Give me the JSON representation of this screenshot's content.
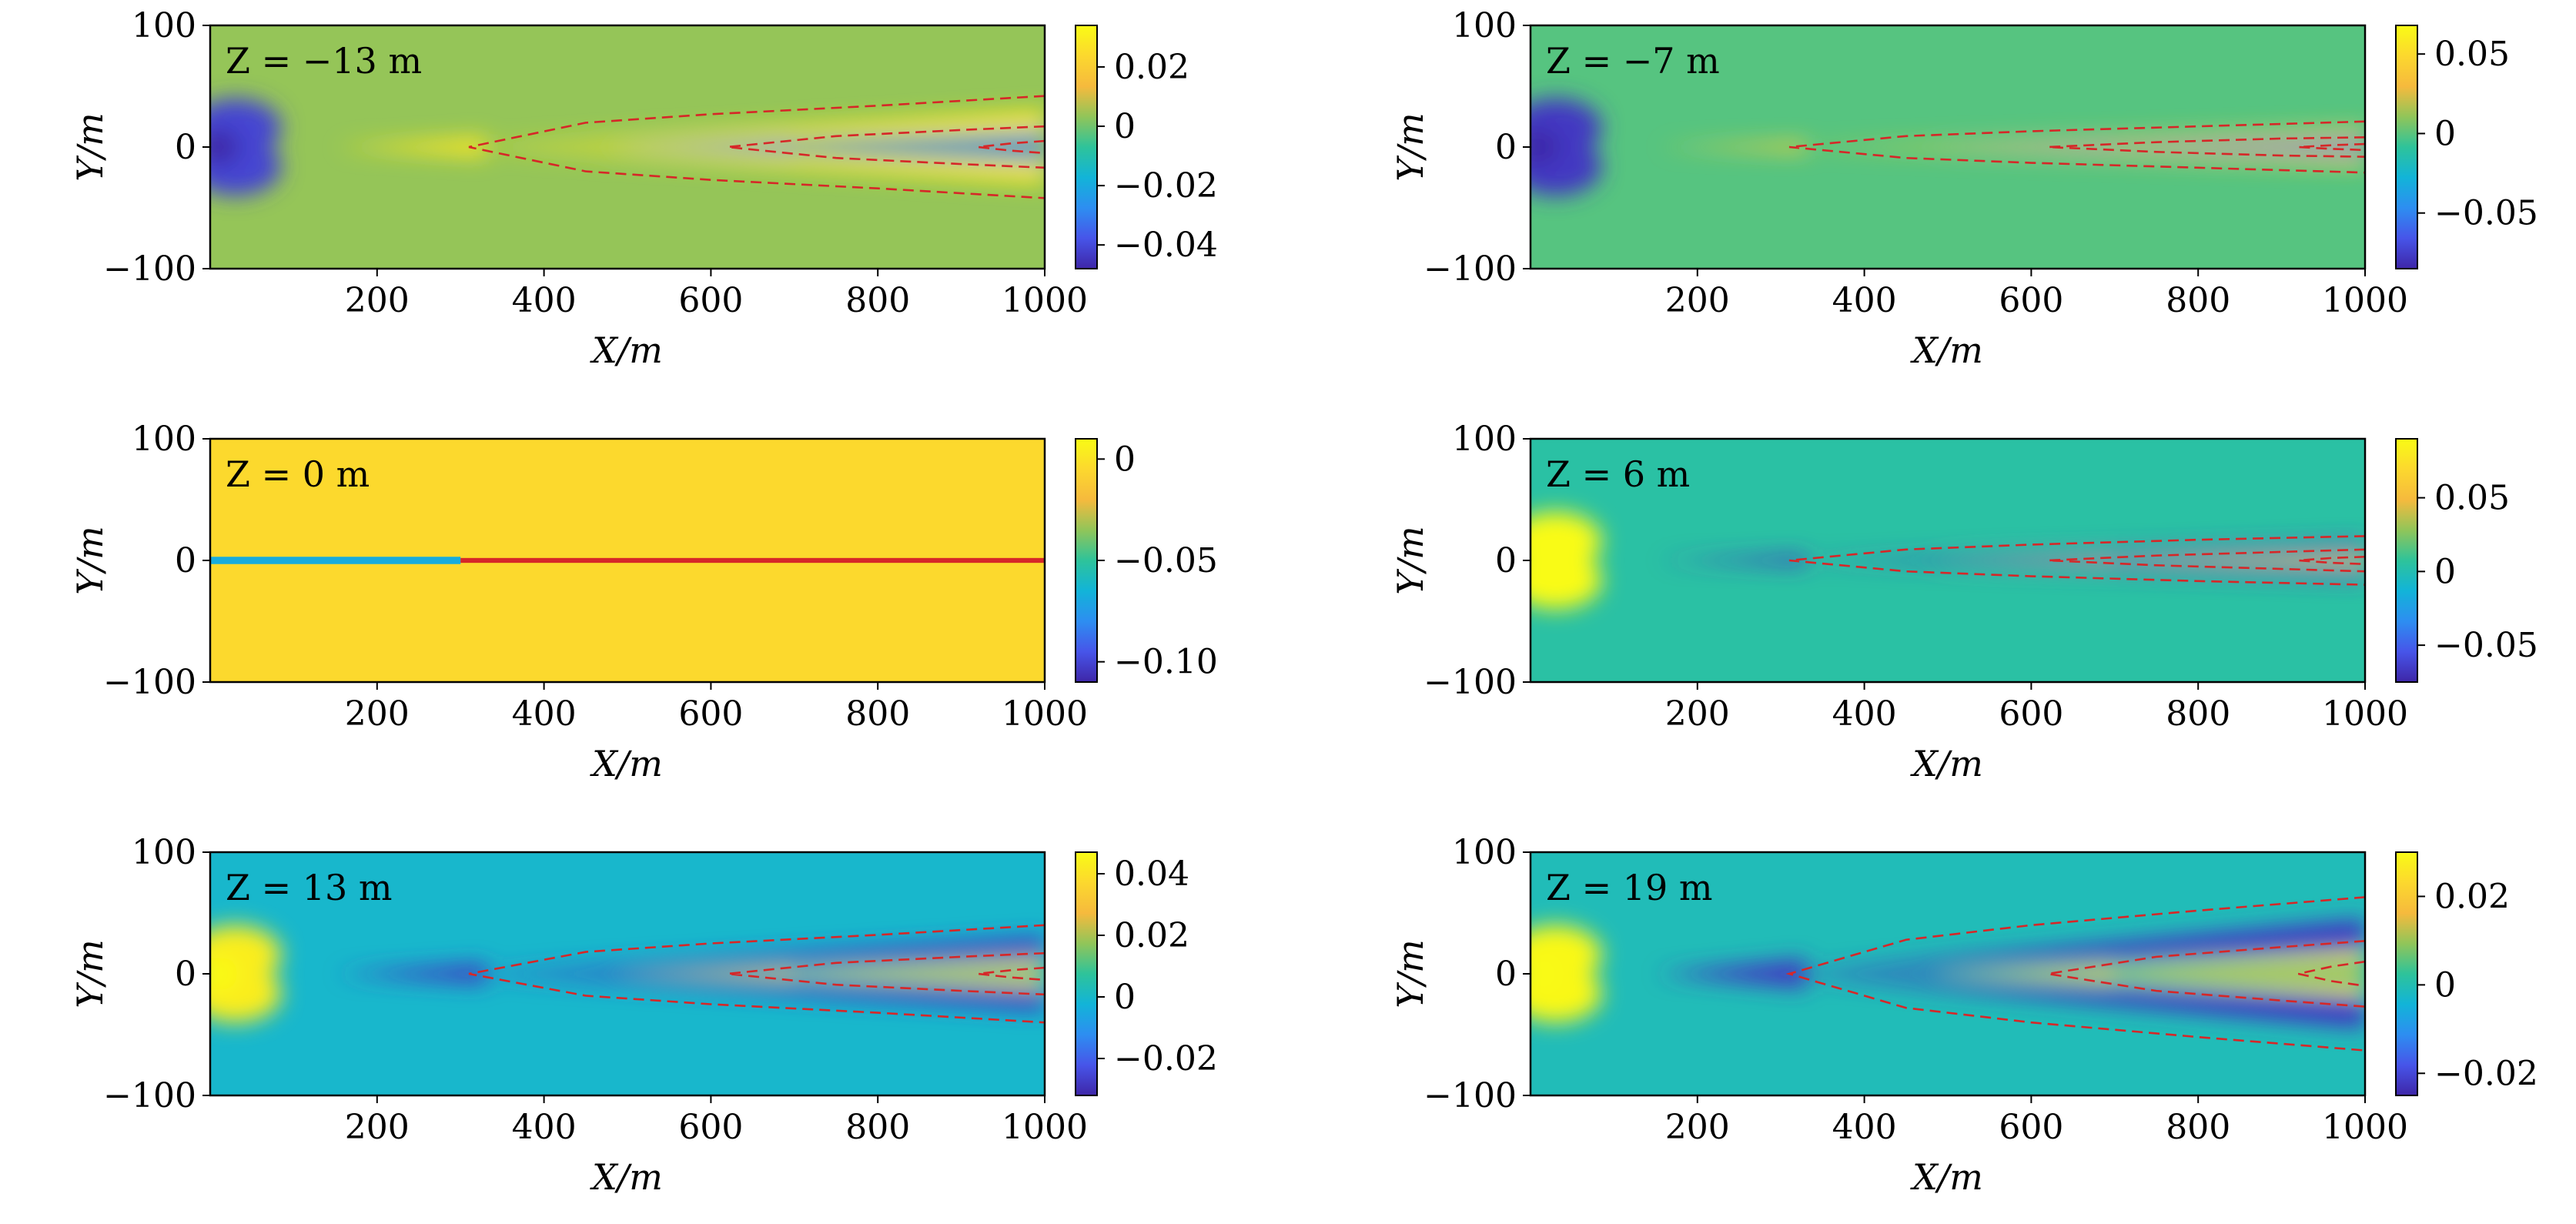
{
  "figure": {
    "title": "",
    "xlabel": "X/m",
    "ylabel": "Y/m",
    "z_unit": "m",
    "colormap": [
      "#3e26a8",
      "#4755e9",
      "#2d8ef1",
      "#12b4d8",
      "#2ec39a",
      "#91c559",
      "#f6ba3d",
      "#fcd82e",
      "#f9fb15"
    ],
    "contour_color": "#d62728",
    "contour_style": "dashed"
  },
  "chart_data": [
    {
      "type": "heatmap",
      "z_label": "Z = −13 m",
      "xlabel": "X/m",
      "ylabel": "Y/m",
      "xlim": [
        0,
        1000
      ],
      "ylim": [
        -100,
        100
      ],
      "x_ticks": [
        "200",
        "400",
        "600",
        "800",
        "1000"
      ],
      "y_ticks": [
        "100",
        "0",
        "−100"
      ],
      "clim": [
        -0.048,
        0.034
      ],
      "colorbar_ticks": [
        {
          "v": 0.02,
          "t": "0.02"
        },
        {
          "v": 0,
          "t": "0"
        },
        {
          "v": -0.02,
          "t": "−0.02"
        },
        {
          "v": -0.04,
          "t": "−0.04"
        }
      ],
      "contours": [
        {
          "x": [
            310,
            450,
            600,
            800,
            1000
          ],
          "y": [
            0,
            20,
            27,
            34,
            42
          ]
        },
        {
          "x": [
            620,
            750,
            900,
            1000
          ],
          "y": [
            0,
            9,
            14,
            17
          ]
        },
        {
          "x": [
            920,
            960,
            1000
          ],
          "y": [
            0,
            3,
            5
          ]
        }
      ]
    },
    {
      "type": "heatmap",
      "z_label": "Z = −7 m",
      "xlabel": "X/m",
      "ylabel": "Y/m",
      "xlim": [
        0,
        1000
      ],
      "ylim": [
        -100,
        100
      ],
      "x_ticks": [
        "200",
        "400",
        "600",
        "800",
        "1000"
      ],
      "y_ticks": [
        "100",
        "0",
        "−100"
      ],
      "clim": [
        -0.085,
        0.068
      ],
      "colorbar_ticks": [
        {
          "v": 0.05,
          "t": "0.05"
        },
        {
          "v": 0,
          "t": "0"
        },
        {
          "v": -0.05,
          "t": "−0.05"
        }
      ],
      "contours": [
        {
          "x": [
            310,
            450,
            600,
            800,
            1000
          ],
          "y": [
            0,
            9,
            13,
            17,
            21
          ]
        },
        {
          "x": [
            620,
            750,
            900,
            1000
          ],
          "y": [
            0,
            4,
            7,
            8
          ]
        },
        {
          "x": [
            920,
            960,
            1000
          ],
          "y": [
            0,
            1.5,
            2.5
          ]
        }
      ]
    },
    {
      "type": "heatmap",
      "z_label": "Z = 0 m",
      "xlabel": "X/m",
      "ylabel": "Y/m",
      "xlim": [
        0,
        1000
      ],
      "ylim": [
        -100,
        100
      ],
      "x_ticks": [
        "200",
        "400",
        "600",
        "800",
        "1000"
      ],
      "y_ticks": [
        "100",
        "0",
        "−100"
      ],
      "clim": [
        -0.11,
        0.01
      ],
      "colorbar_ticks": [
        {
          "v": 0,
          "t": "0"
        },
        {
          "v": -0.05,
          "t": "−0.05"
        },
        {
          "v": -0.1,
          "t": "−0.10"
        }
      ],
      "contours": []
    },
    {
      "type": "heatmap",
      "z_label": "Z = 6 m",
      "xlabel": "X/m",
      "ylabel": "Y/m",
      "xlim": [
        0,
        1000
      ],
      "ylim": [
        -100,
        100
      ],
      "x_ticks": [
        "200",
        "400",
        "600",
        "800",
        "1000"
      ],
      "y_ticks": [
        "100",
        "0",
        "−100"
      ],
      "clim": [
        -0.075,
        0.09
      ],
      "colorbar_ticks": [
        {
          "v": 0.05,
          "t": "0.05"
        },
        {
          "v": 0,
          "t": "0"
        },
        {
          "v": -0.05,
          "t": "−0.05"
        }
      ],
      "contours": [
        {
          "x": [
            310,
            450,
            600,
            800,
            1000
          ],
          "y": [
            0,
            9,
            13,
            17,
            20
          ]
        },
        {
          "x": [
            620,
            750,
            900,
            1000
          ],
          "y": [
            0,
            4,
            7,
            9
          ]
        },
        {
          "x": [
            920,
            960,
            1000
          ],
          "y": [
            0,
            2,
            3
          ]
        }
      ]
    },
    {
      "type": "heatmap",
      "z_label": "Z = 13 m",
      "xlabel": "X/m",
      "ylabel": "Y/m",
      "xlim": [
        0,
        1000
      ],
      "ylim": [
        -100,
        100
      ],
      "x_ticks": [
        "200",
        "400",
        "600",
        "800",
        "1000"
      ],
      "y_ticks": [
        "100",
        "0",
        "−100"
      ],
      "clim": [
        -0.032,
        0.047
      ],
      "colorbar_ticks": [
        {
          "v": 0.04,
          "t": "0.04"
        },
        {
          "v": 0.02,
          "t": "0.02"
        },
        {
          "v": 0,
          "t": "0"
        },
        {
          "v": -0.02,
          "t": "−0.02"
        }
      ],
      "contours": [
        {
          "x": [
            310,
            450,
            600,
            800,
            1000
          ],
          "y": [
            0,
            18,
            25,
            32,
            40
          ]
        },
        {
          "x": [
            620,
            750,
            900,
            1000
          ],
          "y": [
            0,
            9,
            14,
            17
          ]
        },
        {
          "x": [
            920,
            960,
            1000
          ],
          "y": [
            0,
            3,
            5
          ]
        }
      ]
    },
    {
      "type": "heatmap",
      "z_label": "Z = 19 m",
      "xlabel": "X/m",
      "ylabel": "Y/m",
      "xlim": [
        0,
        1000
      ],
      "ylim": [
        -100,
        100
      ],
      "x_ticks": [
        "200",
        "400",
        "600",
        "800",
        "1000"
      ],
      "y_ticks": [
        "100",
        "0",
        "−100"
      ],
      "clim": [
        -0.025,
        0.03
      ],
      "colorbar_ticks": [
        {
          "v": 0.02,
          "t": "0.02"
        },
        {
          "v": 0,
          "t": "0"
        },
        {
          "v": -0.02,
          "t": "−0.02"
        }
      ],
      "contours": [
        {
          "x": [
            310,
            450,
            600,
            800,
            1000
          ],
          "y": [
            0,
            28,
            40,
            52,
            63
          ]
        },
        {
          "x": [
            620,
            750,
            900,
            1000
          ],
          "y": [
            0,
            14,
            22,
            27
          ]
        },
        {
          "x": [
            920,
            960,
            1000
          ],
          "y": [
            0,
            6,
            10
          ]
        }
      ]
    }
  ]
}
